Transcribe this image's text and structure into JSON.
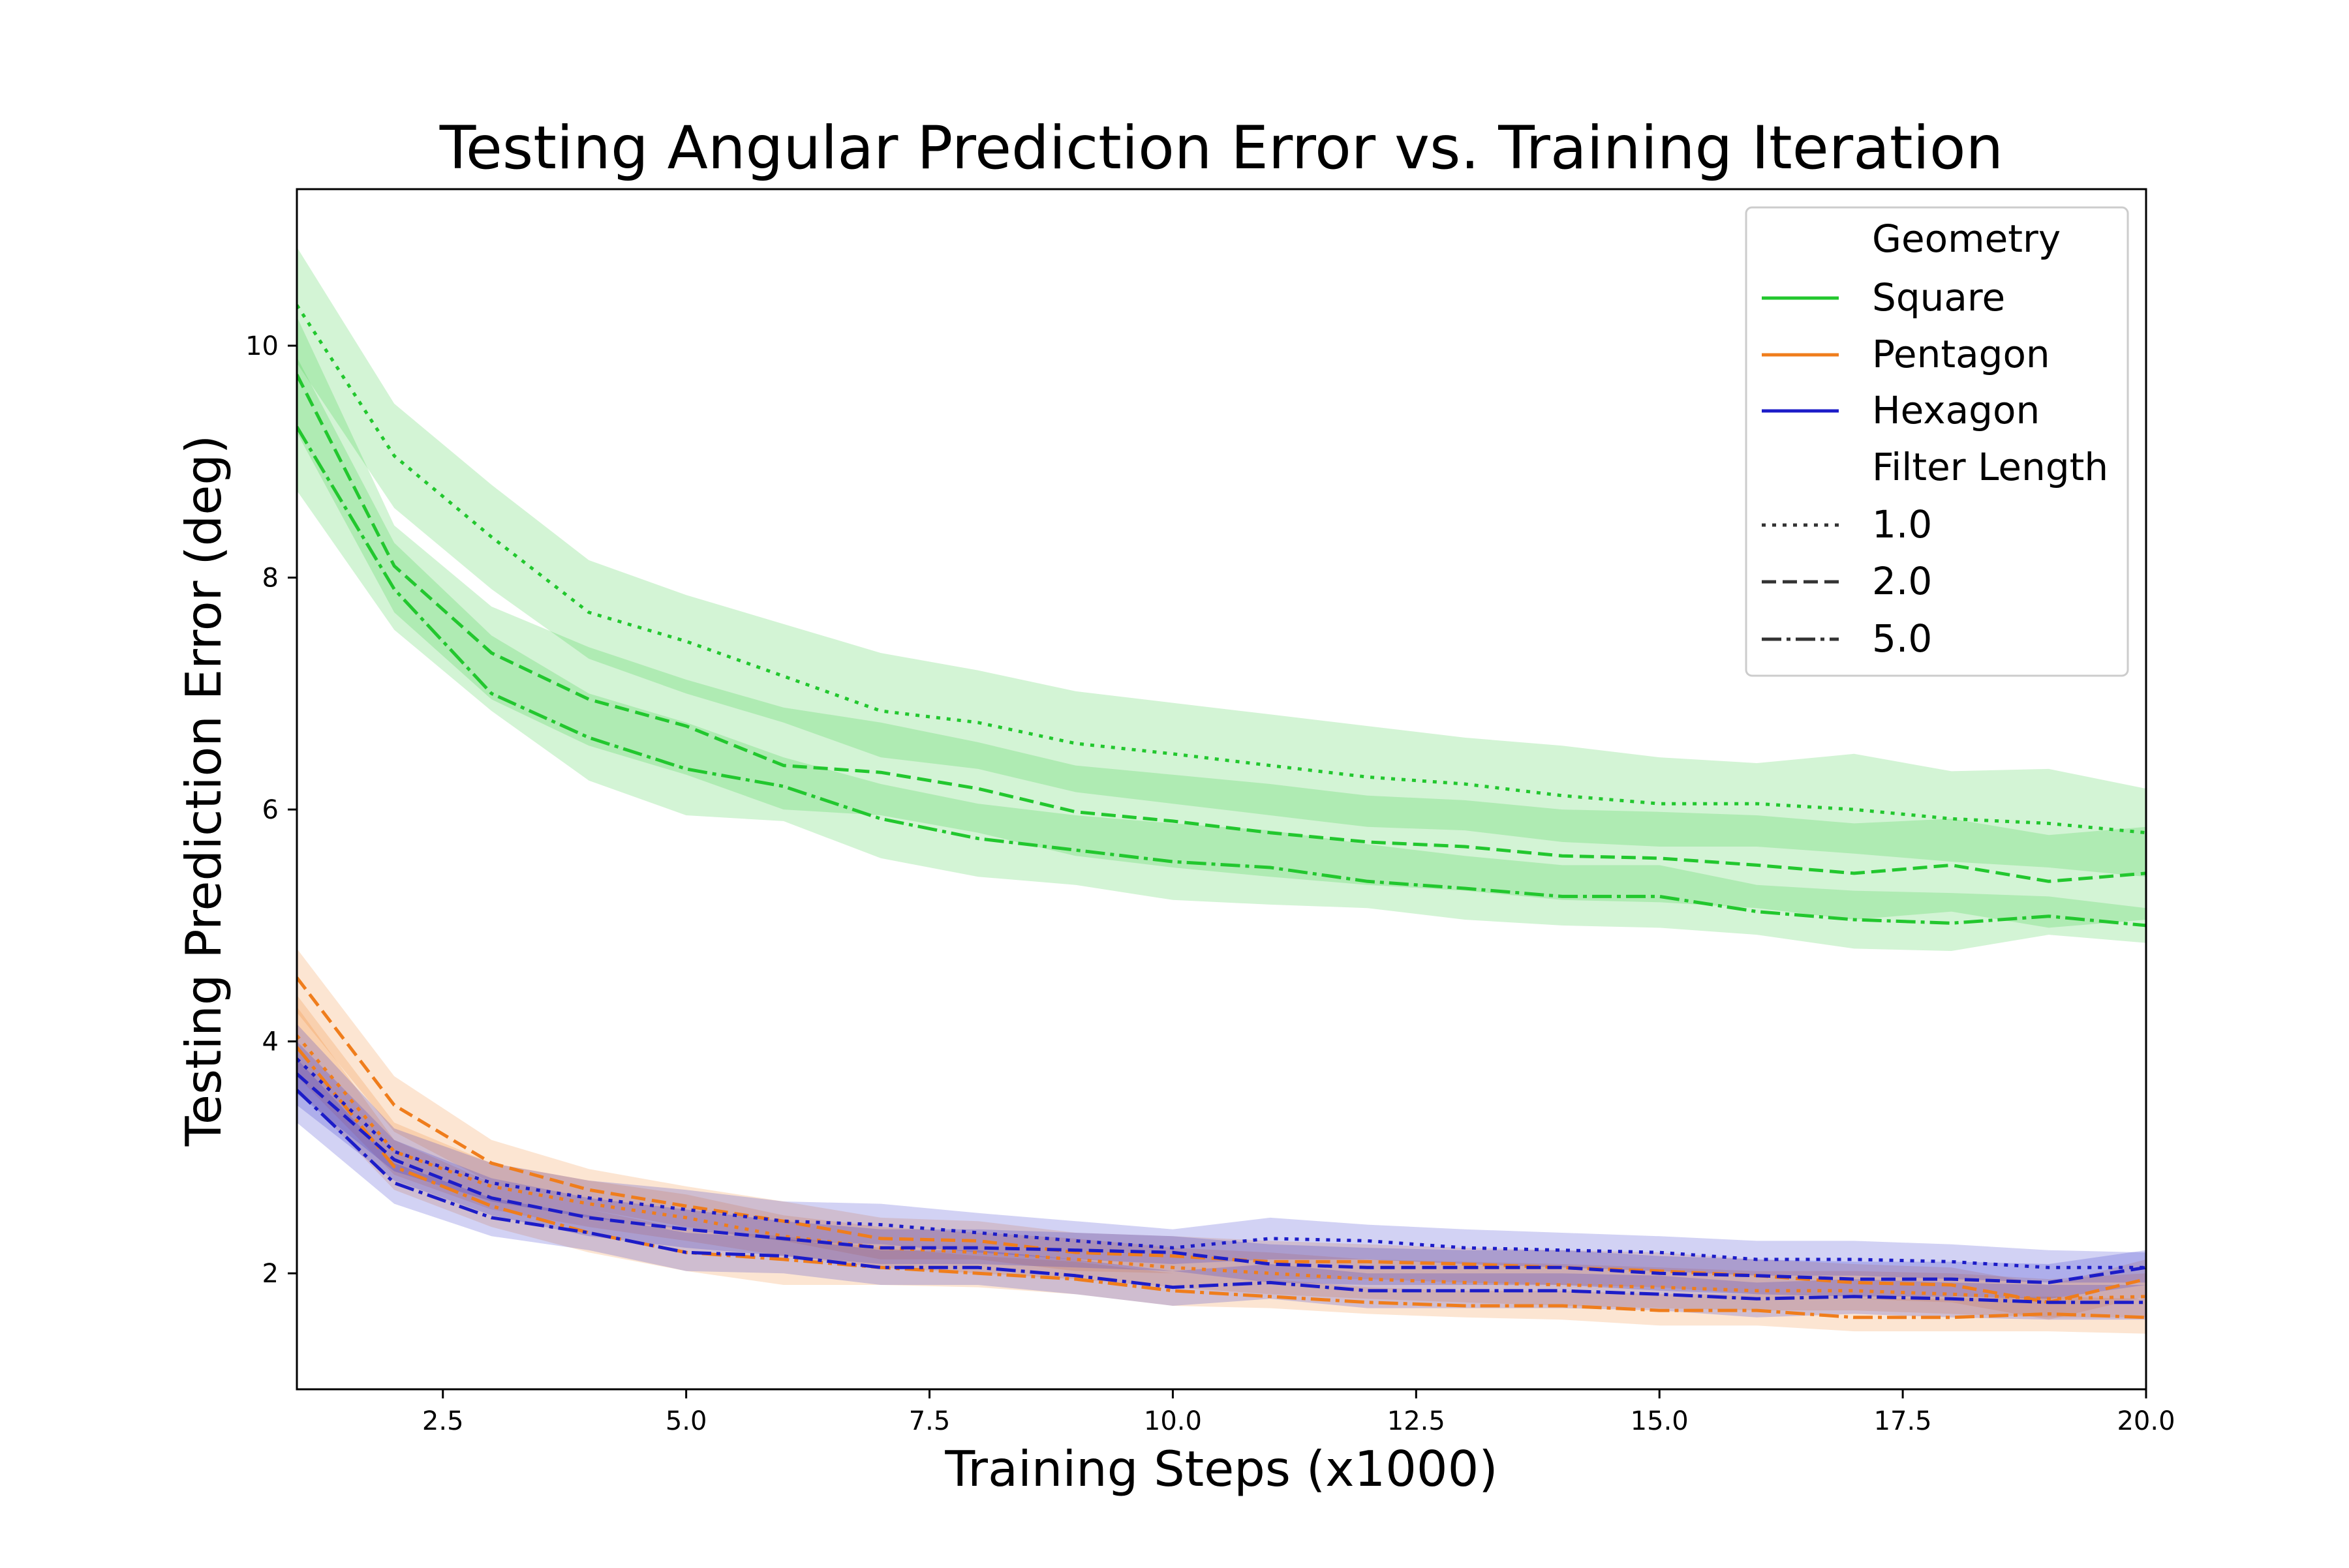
{
  "chart_data": {
    "type": "line",
    "title": "Testing Angular Prediction Error vs. Training Iteration",
    "xlabel": "Training Steps (x1000)",
    "ylabel": "Testing Prediction Error (deg)",
    "xlim": [
      1,
      20
    ],
    "ylim": [
      1,
      11.35
    ],
    "xticks": [
      2.5,
      5.0,
      7.5,
      10.0,
      12.5,
      15.0,
      17.5,
      20.0
    ],
    "xtick_labels": [
      "2.5",
      "5.0",
      "7.5",
      "10.0",
      "12.5",
      "15.0",
      "17.5",
      "20.0"
    ],
    "yticks": [
      2,
      4,
      6,
      8,
      10
    ],
    "ytick_labels": [
      "2",
      "4",
      "6",
      "8",
      "10"
    ],
    "grid": false,
    "legend": {
      "placement": "top-right",
      "hue_title": "Geometry",
      "style_title": "Filter Length",
      "hue_entries": [
        {
          "label": "Square",
          "color": "#22c72e"
        },
        {
          "label": "Pentagon",
          "color": "#ef7d1c"
        },
        {
          "label": "Hexagon",
          "color": "#1c1cc8"
        }
      ],
      "style_entries": [
        {
          "label": "1.0",
          "dash": "dotted"
        },
        {
          "label": "2.0",
          "dash": "dashed"
        },
        {
          "label": "5.0",
          "dash": "dashdot"
        }
      ]
    },
    "x": [
      1,
      2,
      3,
      4,
      5,
      6,
      7,
      8,
      9,
      10,
      11,
      12,
      13,
      14,
      15,
      16,
      17,
      18,
      19,
      20
    ],
    "series": [
      {
        "name": "Square",
        "filter_length": "1.0",
        "color": "#22c72e",
        "dash": "dotted",
        "values": [
          10.35,
          9.05,
          8.35,
          7.7,
          7.45,
          7.15,
          6.85,
          6.75,
          6.57,
          6.48,
          6.38,
          6.28,
          6.22,
          6.12,
          6.05,
          6.05,
          6.0,
          5.92,
          5.88,
          5.8
        ],
        "lower": [
          9.85,
          8.6,
          7.9,
          7.3,
          7.0,
          6.75,
          6.45,
          6.35,
          6.15,
          6.05,
          5.95,
          5.85,
          5.82,
          5.72,
          5.68,
          5.68,
          5.62,
          5.55,
          5.5,
          5.42
        ],
        "upper": [
          10.85,
          9.5,
          8.8,
          8.15,
          7.85,
          7.6,
          7.35,
          7.2,
          7.02,
          6.92,
          6.82,
          6.72,
          6.62,
          6.55,
          6.45,
          6.4,
          6.48,
          6.33,
          6.35,
          6.18
        ]
      },
      {
        "name": "Square",
        "filter_length": "2.0",
        "color": "#22c72e",
        "dash": "dashed",
        "values": [
          9.75,
          8.1,
          7.35,
          6.95,
          6.72,
          6.38,
          6.32,
          6.18,
          5.98,
          5.9,
          5.8,
          5.72,
          5.68,
          5.6,
          5.58,
          5.52,
          5.45,
          5.52,
          5.38,
          5.45
        ],
        "lower": [
          9.25,
          7.7,
          6.95,
          6.55,
          6.3,
          6.0,
          5.95,
          5.8,
          5.6,
          5.5,
          5.42,
          5.35,
          5.3,
          5.22,
          5.2,
          5.15,
          5.05,
          5.12,
          4.98,
          5.05
        ],
        "upper": [
          10.25,
          8.45,
          7.75,
          7.4,
          7.12,
          6.88,
          6.75,
          6.58,
          6.38,
          6.3,
          6.22,
          6.12,
          6.08,
          6.0,
          5.98,
          5.95,
          5.88,
          5.92,
          5.78,
          5.85
        ]
      },
      {
        "name": "Square",
        "filter_length": "5.0",
        "color": "#22c72e",
        "dash": "dashdot",
        "values": [
          9.3,
          7.9,
          7.0,
          6.62,
          6.35,
          6.2,
          5.92,
          5.75,
          5.65,
          5.55,
          5.5,
          5.38,
          5.32,
          5.25,
          5.25,
          5.12,
          5.05,
          5.02,
          5.08,
          5.0
        ],
        "lower": [
          8.75,
          7.55,
          6.85,
          6.25,
          5.95,
          5.9,
          5.58,
          5.42,
          5.35,
          5.22,
          5.18,
          5.15,
          5.05,
          5.0,
          4.98,
          4.92,
          4.8,
          4.78,
          4.92,
          4.85
        ],
        "upper": [
          9.9,
          8.3,
          7.5,
          7.0,
          6.75,
          6.45,
          6.22,
          6.05,
          5.95,
          5.88,
          5.82,
          5.7,
          5.6,
          5.52,
          5.52,
          5.35,
          5.3,
          5.28,
          5.25,
          5.15
        ]
      },
      {
        "name": "Pentagon",
        "filter_length": "1.0",
        "color": "#ef7d1c",
        "dash": "dotted",
        "values": [
          4.05,
          3.05,
          2.75,
          2.6,
          2.48,
          2.32,
          2.22,
          2.18,
          2.12,
          2.05,
          2.0,
          1.95,
          1.92,
          1.9,
          1.88,
          1.85,
          1.85,
          1.82,
          1.78,
          1.8
        ],
        "lower": [
          3.7,
          2.85,
          2.55,
          2.4,
          2.28,
          2.15,
          2.05,
          2.0,
          1.95,
          1.88,
          1.82,
          1.78,
          1.75,
          1.72,
          1.7,
          1.68,
          1.68,
          1.65,
          1.62,
          1.62
        ],
        "upper": [
          4.4,
          3.3,
          2.95,
          2.8,
          2.68,
          2.5,
          2.4,
          2.35,
          2.3,
          2.22,
          2.18,
          2.12,
          2.1,
          2.08,
          2.05,
          2.02,
          2.02,
          2.0,
          1.95,
          2.0
        ]
      },
      {
        "name": "Pentagon",
        "filter_length": "2.0",
        "color": "#ef7d1c",
        "dash": "dashed",
        "values": [
          4.55,
          3.45,
          2.95,
          2.72,
          2.58,
          2.45,
          2.3,
          2.28,
          2.18,
          2.15,
          2.1,
          2.1,
          2.08,
          2.05,
          2.02,
          1.98,
          1.92,
          1.9,
          1.75,
          1.95
        ],
        "lower": [
          4.25,
          3.22,
          2.78,
          2.55,
          2.4,
          2.28,
          2.12,
          2.12,
          2.02,
          2.0,
          1.95,
          1.95,
          1.92,
          1.9,
          1.88,
          1.82,
          1.78,
          1.75,
          1.6,
          1.8
        ],
        "upper": [
          4.8,
          3.7,
          3.15,
          2.9,
          2.75,
          2.62,
          2.48,
          2.45,
          2.35,
          2.32,
          2.28,
          2.25,
          2.22,
          2.2,
          2.18,
          2.12,
          2.08,
          2.05,
          1.9,
          2.12
        ]
      },
      {
        "name": "Pentagon",
        "filter_length": "5.0",
        "color": "#ef7d1c",
        "dash": "dashdot",
        "values": [
          3.95,
          2.92,
          2.58,
          2.35,
          2.18,
          2.12,
          2.05,
          2.0,
          1.95,
          1.85,
          1.8,
          1.75,
          1.72,
          1.72,
          1.68,
          1.68,
          1.62,
          1.62,
          1.65,
          1.62
        ],
        "lower": [
          3.6,
          2.72,
          2.4,
          2.18,
          2.02,
          1.9,
          1.9,
          1.88,
          1.82,
          1.72,
          1.7,
          1.65,
          1.62,
          1.6,
          1.55,
          1.55,
          1.5,
          1.5,
          1.5,
          1.48
        ],
        "upper": [
          4.3,
          3.15,
          2.78,
          2.55,
          2.38,
          2.32,
          2.22,
          2.15,
          2.1,
          2.0,
          1.95,
          1.88,
          1.85,
          1.85,
          1.82,
          1.82,
          1.78,
          1.78,
          1.8,
          1.78
        ]
      },
      {
        "name": "Hexagon",
        "filter_length": "1.0",
        "color": "#1c1cc8",
        "dash": "dotted",
        "values": [
          3.85,
          3.05,
          2.78,
          2.65,
          2.55,
          2.45,
          2.42,
          2.35,
          2.28,
          2.22,
          2.3,
          2.28,
          2.22,
          2.2,
          2.18,
          2.12,
          2.12,
          2.1,
          2.05,
          2.05
        ],
        "lower": [
          3.55,
          2.88,
          2.62,
          2.48,
          2.38,
          2.28,
          2.25,
          2.18,
          2.12,
          2.08,
          2.12,
          2.12,
          2.08,
          2.05,
          2.02,
          1.98,
          1.98,
          1.95,
          1.92,
          1.92
        ],
        "upper": [
          4.15,
          3.25,
          2.95,
          2.8,
          2.72,
          2.62,
          2.6,
          2.52,
          2.45,
          2.38,
          2.48,
          2.42,
          2.38,
          2.35,
          2.32,
          2.28,
          2.28,
          2.25,
          2.2,
          2.18
        ]
      },
      {
        "name": "Hexagon",
        "filter_length": "2.0",
        "color": "#1c1cc8",
        "dash": "dashed",
        "values": [
          3.72,
          2.98,
          2.65,
          2.48,
          2.38,
          2.3,
          2.22,
          2.22,
          2.2,
          2.18,
          2.08,
          2.05,
          2.05,
          2.05,
          2.0,
          1.98,
          1.95,
          1.95,
          1.92,
          2.05
        ],
        "lower": [
          3.45,
          2.8,
          2.5,
          2.32,
          2.22,
          2.15,
          2.08,
          2.08,
          2.05,
          2.02,
          1.92,
          1.9,
          1.9,
          1.9,
          1.85,
          1.82,
          1.8,
          1.8,
          1.78,
          1.9
        ],
        "upper": [
          4.0,
          3.15,
          2.82,
          2.65,
          2.55,
          2.45,
          2.38,
          2.38,
          2.35,
          2.32,
          2.25,
          2.22,
          2.2,
          2.2,
          2.15,
          2.12,
          2.1,
          2.1,
          2.08,
          2.2
        ]
      },
      {
        "name": "Hexagon",
        "filter_length": "5.0",
        "color": "#1c1cc8",
        "dash": "dashdot",
        "values": [
          3.58,
          2.78,
          2.48,
          2.35,
          2.18,
          2.15,
          2.05,
          2.05,
          1.98,
          1.88,
          1.92,
          1.85,
          1.85,
          1.85,
          1.82,
          1.78,
          1.8,
          1.78,
          1.75,
          1.75
        ],
        "lower": [
          3.3,
          2.6,
          2.32,
          2.2,
          2.02,
          2.0,
          1.9,
          1.9,
          1.82,
          1.72,
          1.78,
          1.7,
          1.7,
          1.7,
          1.68,
          1.62,
          1.65,
          1.62,
          1.6,
          1.6
        ],
        "upper": [
          3.85,
          2.95,
          2.65,
          2.5,
          2.35,
          2.3,
          2.2,
          2.2,
          2.12,
          2.02,
          2.08,
          2.0,
          2.0,
          2.0,
          1.98,
          1.92,
          1.95,
          1.92,
          1.9,
          1.9
        ]
      }
    ]
  }
}
